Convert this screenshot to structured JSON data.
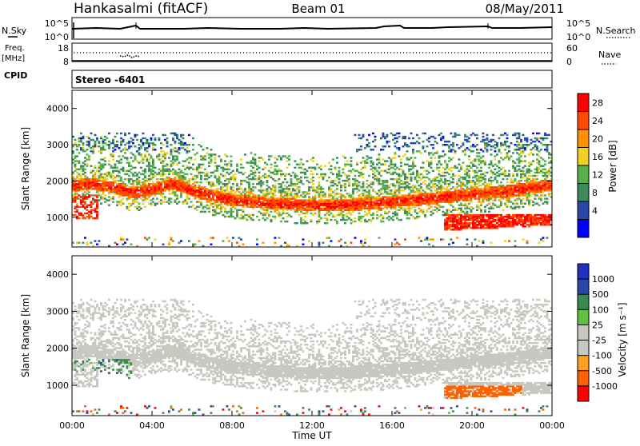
{
  "header": {
    "station": "Hankasalmi (fitACF)",
    "beam": "Beam 01",
    "date": "08/May/2011"
  },
  "top_panels": {
    "nsky_label": "N.Sky",
    "nsearch_label": "N.Search",
    "nsky_ticks": [
      "10^5",
      "10^0"
    ],
    "nsearch_ticks": [
      "10^5",
      "10^0"
    ],
    "freq_label_line1": "Freq.",
    "freq_label_line2": "[MHz]",
    "freq_ticks": [
      "18",
      "8"
    ],
    "nave_label": "Nave",
    "nave_ticks": [
      "60",
      "0"
    ],
    "cpid_label": "CPID",
    "cpid_text": "Stereo -6401"
  },
  "colors": {
    "power": [
      "#0000ff",
      "#2848a8",
      "#3f8a5a",
      "#57b04c",
      "#f0d020",
      "#ff9000",
      "#ff4a00",
      "#ff0000"
    ],
    "velocity": [
      "#ff0000",
      "#ff6000",
      "#ffa020",
      "#c8c8c0",
      "#c8c8c0",
      "#60c040",
      "#3a8a50",
      "#2848a8",
      "#2030c0"
    ]
  },
  "chart_data": [
    {
      "type": "heatmap",
      "quantity": "power",
      "xlabel": "",
      "ylabel": "Slant Range [km]",
      "x_ticks": [
        "00:00",
        "04:00",
        "08:00",
        "12:00",
        "16:00",
        "20:00",
        "00:00"
      ],
      "xlim_hours": [
        0,
        24
      ],
      "ylim_km": [
        180,
        4500
      ],
      "y_ticks": [
        1000,
        2000,
        3000,
        4000
      ],
      "colorbar_label": "Power [dB]",
      "colorbar_ticks": [
        "28",
        "24",
        "20",
        "16",
        "12",
        "8",
        "4"
      ],
      "colorbar_range": [
        0,
        32
      ],
      "main_band_center_km": [
        [
          0,
          1850
        ],
        [
          1,
          1900
        ],
        [
          2,
          1800
        ],
        [
          3,
          1650
        ],
        [
          4,
          1750
        ],
        [
          5,
          1900
        ],
        [
          6,
          1700
        ],
        [
          7,
          1550
        ],
        [
          8,
          1450
        ],
        [
          9,
          1400
        ],
        [
          10,
          1350
        ],
        [
          11,
          1330
        ],
        [
          12,
          1300
        ],
        [
          13,
          1300
        ],
        [
          14,
          1320
        ],
        [
          15,
          1350
        ],
        [
          16,
          1400
        ],
        [
          17,
          1450
        ],
        [
          18,
          1500
        ],
        [
          19,
          1550
        ],
        [
          20,
          1600
        ],
        [
          21,
          1650
        ],
        [
          22,
          1700
        ],
        [
          23,
          1800
        ],
        [
          24,
          1850
        ]
      ],
      "secondary_echo": {
        "t_start": 18.5,
        "t_end": 24,
        "range_start_km": 600,
        "range_end_km": 1050
      }
    },
    {
      "type": "heatmap",
      "quantity": "velocity",
      "xlabel": "Time UT",
      "ylabel": "Slant Range [km]",
      "x_ticks": [
        "00:00",
        "04:00",
        "08:00",
        "12:00",
        "16:00",
        "20:00",
        "00:00"
      ],
      "xlim_hours": [
        0,
        24
      ],
      "ylim_km": [
        180,
        4500
      ],
      "y_ticks": [
        1000,
        2000,
        3000,
        4000
      ],
      "colorbar_label": "Velocity [m s⁻¹]",
      "colorbar_ticks": [
        "1000",
        "500",
        "100",
        "25",
        "-25",
        "-100",
        "-500",
        "-1000"
      ],
      "dominant_value_mps": 0,
      "positive_region": {
        "t_start": 0,
        "t_end": 3,
        "range_start_km": 800,
        "range_end_km": 1700
      },
      "negative_region": {
        "t_start": 18.5,
        "t_end": 22.5,
        "range_start_km": 600,
        "range_end_km": 950
      }
    }
  ]
}
